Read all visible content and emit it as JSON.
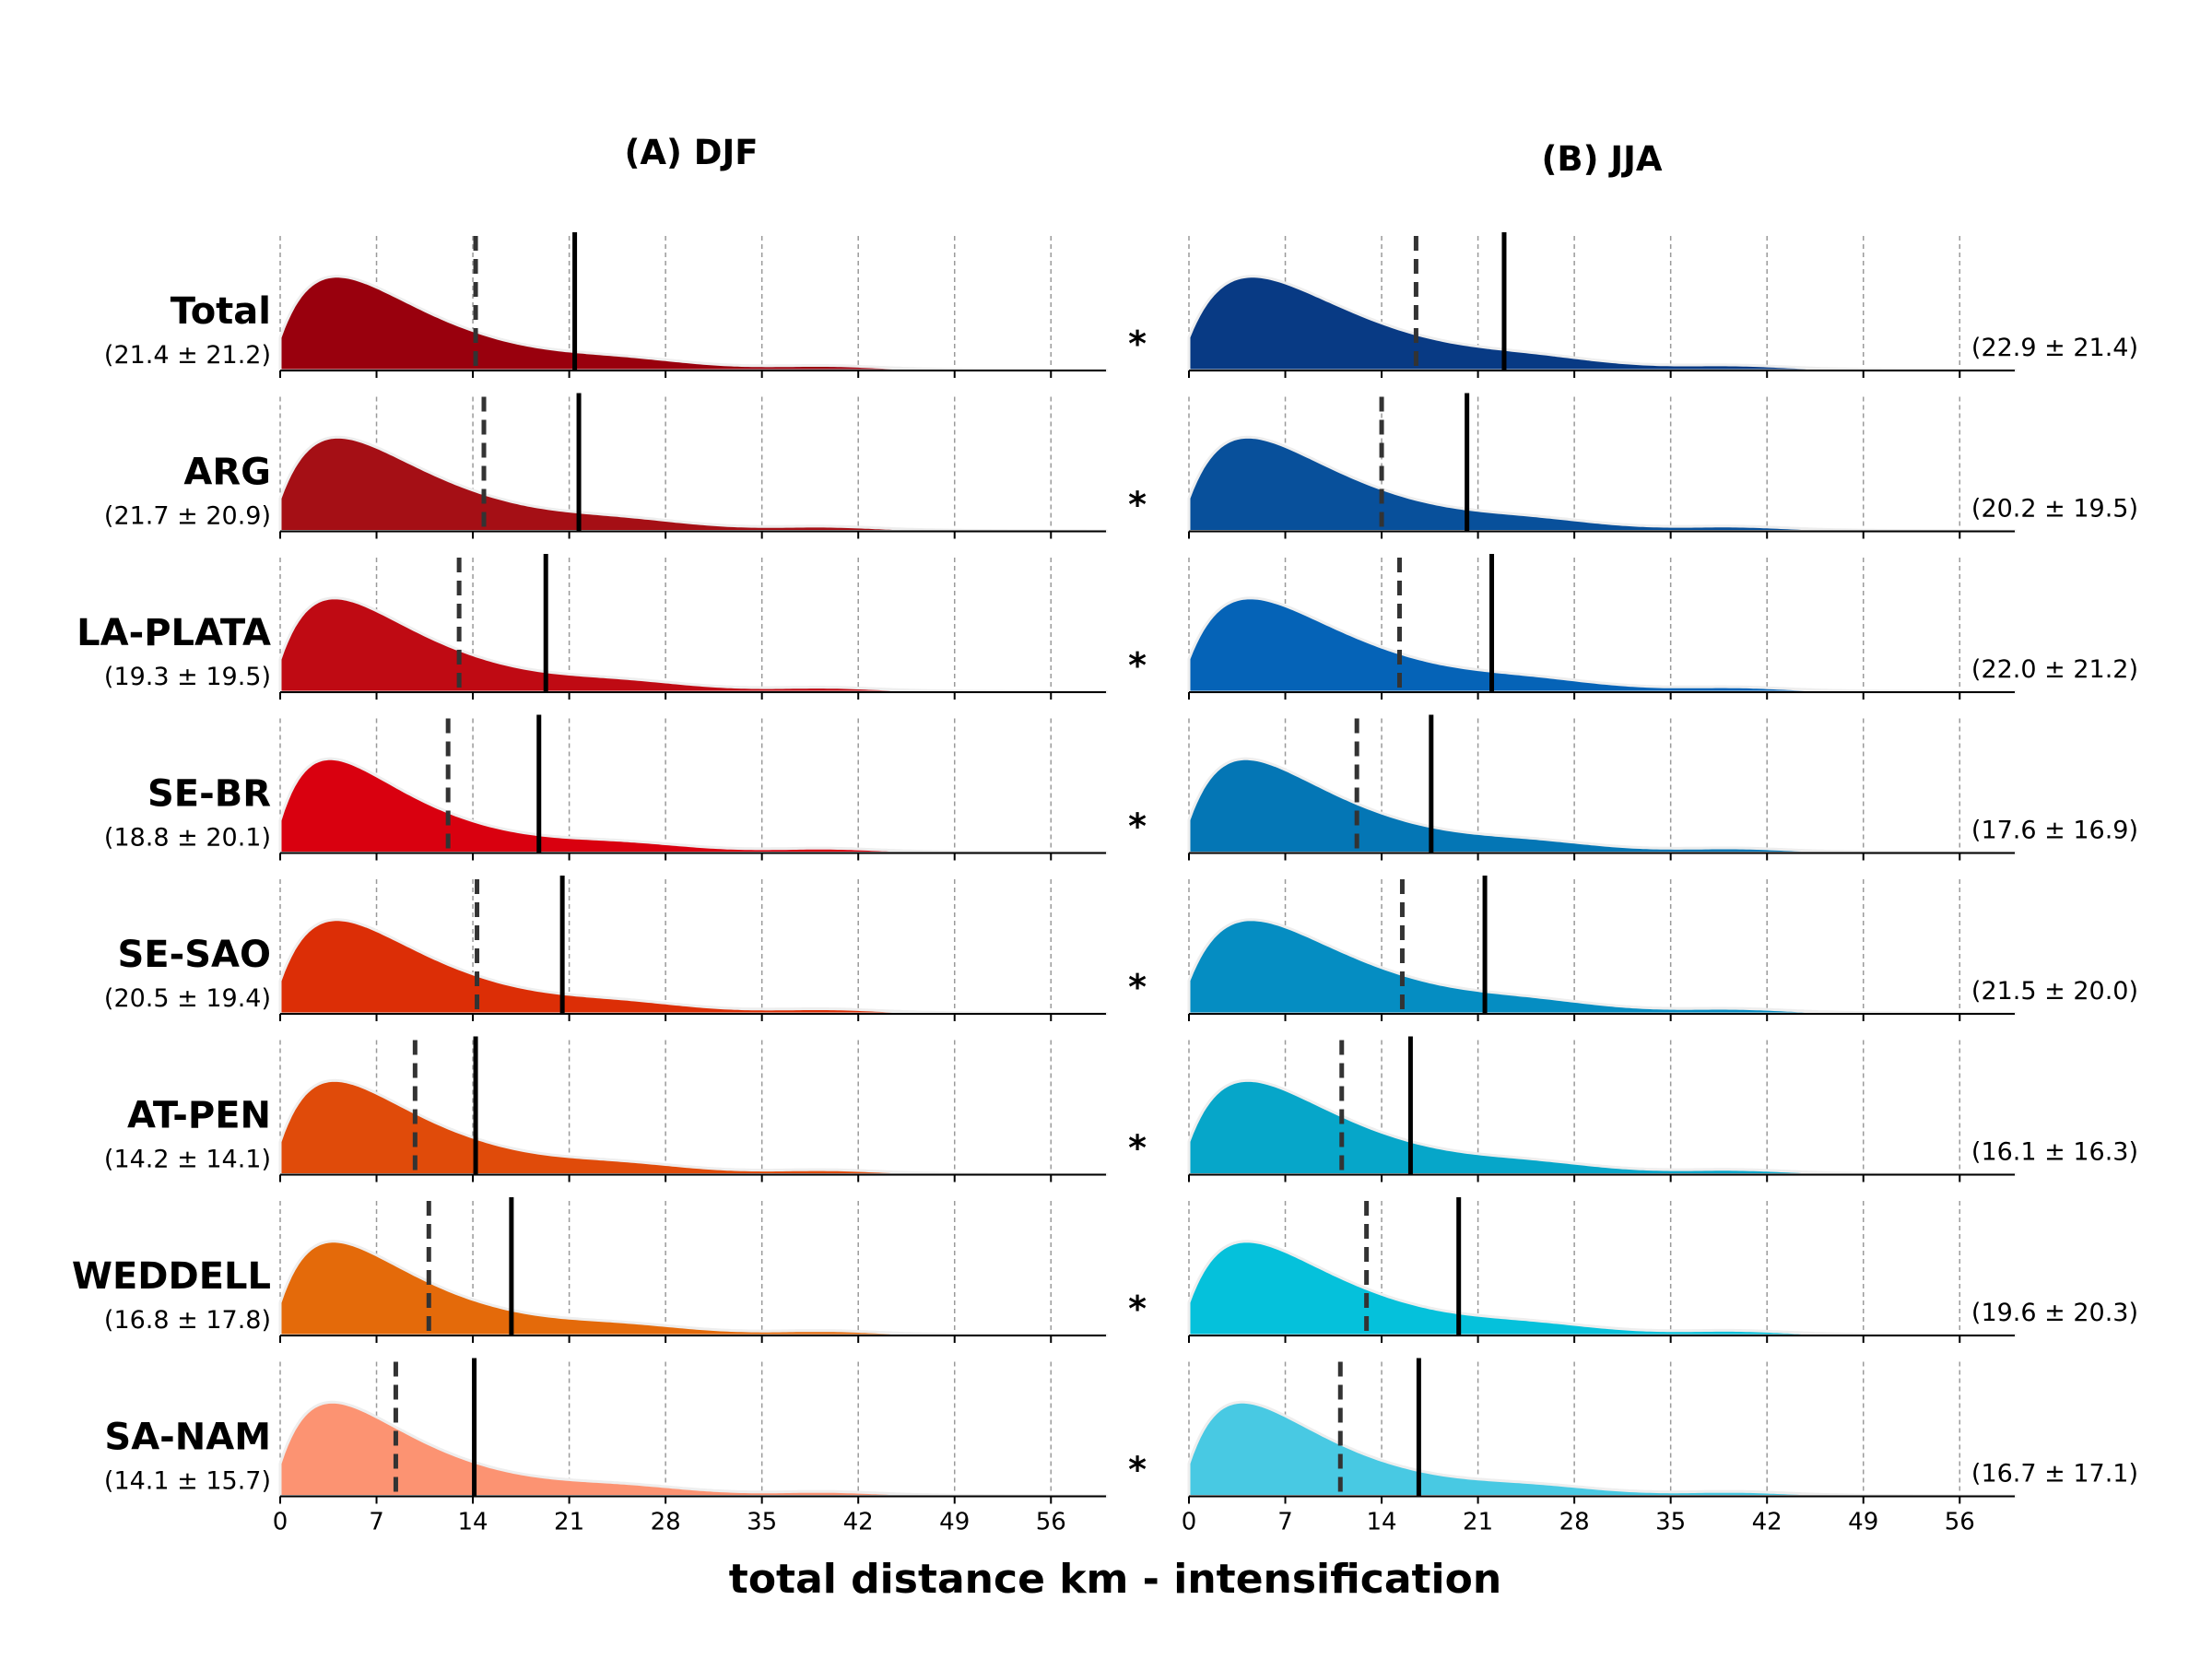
{
  "chart_data": {
    "type": "area",
    "subtype": "ridgeline-density",
    "xlabel": "total distance km - intensification",
    "xticks": [
      0,
      7,
      14,
      21,
      28,
      35,
      42,
      49,
      56
    ],
    "xlim": [
      0,
      60
    ],
    "grid": "vertical dashed",
    "legend_note": "solid line = mean, dashed line = median",
    "panels": [
      {
        "title": "(A) DJF",
        "series": [
          {
            "name": "Total",
            "stat": "(21.4 ± 21.2)",
            "mean": 21.4,
            "median": 14.2,
            "color": "#99000d",
            "peak": 4.6,
            "sig": "*"
          },
          {
            "name": "ARG",
            "stat": "(21.7 ± 20.9)",
            "mean": 21.7,
            "median": 14.8,
            "color": "#a50f15",
            "peak": 4.7,
            "sig": "*"
          },
          {
            "name": "LA-PLATA",
            "stat": "(19.3 ± 19.5)",
            "mean": 19.3,
            "median": 13.0,
            "color": "#bf0a13",
            "peak": 4.4,
            "sig": "*"
          },
          {
            "name": "SE-BR",
            "stat": "(18.8 ± 20.1)",
            "mean": 18.8,
            "median": 12.2,
            "color": "#d9000f",
            "peak": 4.0,
            "sig": "*"
          },
          {
            "name": "SE-SAO",
            "stat": "(20.5 ± 19.4)",
            "mean": 20.5,
            "median": 14.3,
            "color": "#dc2e06",
            "peak": 4.6,
            "sig": "*"
          },
          {
            "name": "AT-PEN",
            "stat": "(14.2 ± 14.1)",
            "mean": 14.2,
            "median": 9.8,
            "color": "#e04b0a",
            "peak": 4.4,
            "sig": "*"
          },
          {
            "name": "WEDDELL",
            "stat": "(16.8 ± 17.8)",
            "mean": 16.8,
            "median": 10.8,
            "color": "#e46a0a",
            "peak": 4.3,
            "sig": "*"
          },
          {
            "name": "SA-NAM",
            "stat": "(14.1 ± 15.7)",
            "mean": 14.1,
            "median": 8.4,
            "color": "#fc9372",
            "peak": 4.2,
            "sig": "*"
          }
        ]
      },
      {
        "title": "(B) JJA",
        "series": [
          {
            "name": "Total",
            "stat": "(22.9 ± 21.4)",
            "mean": 22.9,
            "median": 16.5,
            "color": "#083a84",
            "peak": 5.2
          },
          {
            "name": "ARG",
            "stat": "(20.2 ± 19.5)",
            "mean": 20.2,
            "median": 14.0,
            "color": "#08509b",
            "peak": 4.8
          },
          {
            "name": "LA-PLATA",
            "stat": "(22.0 ± 21.2)",
            "mean": 22.0,
            "median": 15.3,
            "color": "#0563b7",
            "peak": 5.0
          },
          {
            "name": "SE-BR",
            "stat": "(17.6 ± 16.9)",
            "mean": 17.6,
            "median": 12.2,
            "color": "#0476b5",
            "peak": 4.6
          },
          {
            "name": "SE-SAO",
            "stat": "(21.5 ± 20.0)",
            "mean": 21.5,
            "median": 15.5,
            "color": "#058dc2",
            "peak": 5.1
          },
          {
            "name": "AT-PEN",
            "stat": "(16.1 ± 16.3)",
            "mean": 16.1,
            "median": 11.1,
            "color": "#06a6c9",
            "peak": 4.8
          },
          {
            "name": "WEDDELL",
            "stat": "(19.6 ± 20.3)",
            "mean": 19.6,
            "median": 12.9,
            "color": "#05c1db",
            "peak": 4.7
          },
          {
            "name": "SA-NAM",
            "stat": "(16.7 ± 17.1)",
            "mean": 16.7,
            "median": 11.0,
            "color": "#48c9e3",
            "peak": 4.3
          }
        ]
      }
    ]
  }
}
